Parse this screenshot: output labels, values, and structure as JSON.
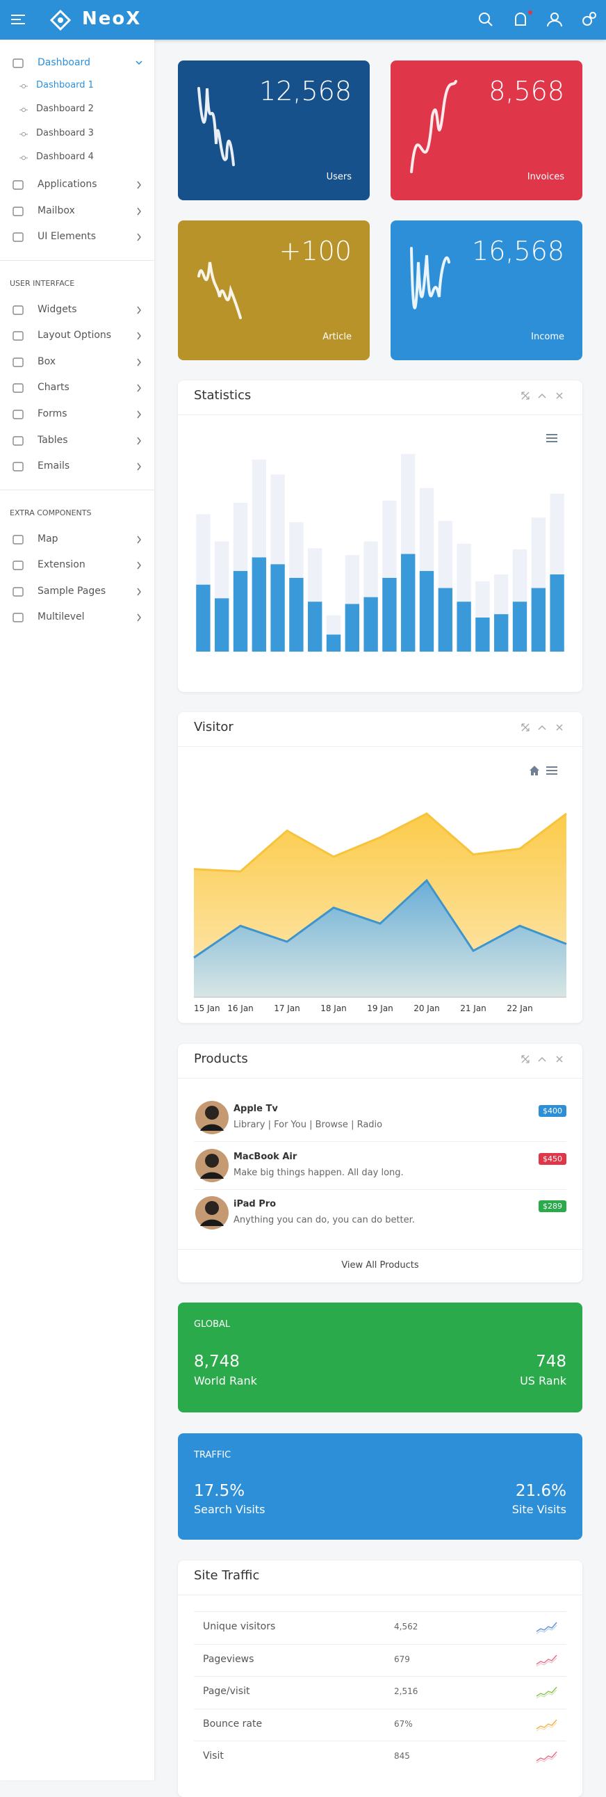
{
  "header": {
    "logo": "NeoX"
  },
  "sidebar": {
    "dashboard": "Dashboard",
    "submenu": [
      "Dashboard 1",
      "Dashboard 2",
      "Dashboard 3",
      "Dashboard 4"
    ],
    "main": [
      "Applications",
      "Mailbox",
      "UI Elements"
    ],
    "sections": [
      {
        "title": "USER INTERFACE",
        "items": [
          "Widgets",
          "Layout Options",
          "Box",
          "Charts",
          "Forms",
          "Tables",
          "Emails"
        ]
      },
      {
        "title": "EXTRA COMPONENTS",
        "items": [
          "Map",
          "Extension",
          "Sample Pages",
          "Multilevel"
        ]
      }
    ]
  },
  "stats": [
    {
      "value": "12,568",
      "label": "Users",
      "color": "#17518b"
    },
    {
      "value": "8,568",
      "label": "Invoices",
      "color": "#e0364a"
    },
    {
      "value": "+100",
      "label": "Article",
      "color": "#b8932a"
    },
    {
      "value": "16,568",
      "label": "Income",
      "color": "#2e8fd9"
    }
  ],
  "chart_data": [
    {
      "type": "bar",
      "title": "Statistics",
      "stacked": true,
      "ylim": [
        0,
        180
      ],
      "series": [
        {
          "color": "#3a9ad9",
          "values": [
            59,
            47,
            71,
            83,
            77,
            65,
            44,
            15,
            42,
            48,
            65,
            86,
            71,
            56,
            44,
            30,
            33,
            44,
            56,
            68
          ]
        },
        {
          "color": "#eef1f8",
          "values": [
            62,
            50,
            60,
            86,
            79,
            49,
            47,
            17,
            43,
            49,
            68,
            88,
            73,
            59,
            51,
            32,
            35,
            46,
            62,
            71
          ]
        }
      ]
    },
    {
      "type": "area",
      "title": "Visitor",
      "ylim": [
        0,
        200
      ],
      "categories": [
        "15 Jan",
        "16 Jan",
        "17 Jan",
        "18 Jan",
        "19 Jan",
        "20 Jan",
        "21 Jan",
        "22 Jan",
        null
      ],
      "series": [
        {
          "color": "#fccb4a",
          "values": [
            113,
            111,
            147,
            124,
            141,
            162,
            126,
            131,
            162
          ]
        },
        {
          "color": "#3e95cd",
          "values": [
            35,
            63,
            49,
            79,
            65,
            103,
            41,
            63,
            47
          ]
        }
      ]
    }
  ],
  "products": {
    "title": "Products",
    "items": [
      {
        "name": "Apple Tv",
        "desc": "Library | For You | Browse | Radio",
        "price": "$400",
        "color": "#2e8fd9"
      },
      {
        "name": "MacBook Air",
        "desc": "Make big things happen. All day long.",
        "price": "$450",
        "color": "#e0364a"
      },
      {
        "name": "iPad Pro",
        "desc": "Anything you can do, you can do better.",
        "price": "$289",
        "color": "#2aaa4a"
      }
    ],
    "footer": "View All Products"
  },
  "global": {
    "title": "GLOBAL",
    "color": "#2aaa4a",
    "items": [
      {
        "value": "8,748",
        "label": "World Rank"
      },
      {
        "value": "748",
        "label": "US Rank"
      }
    ]
  },
  "traffic": {
    "title": "TRAFFIC",
    "color": "#2e8fd9",
    "items": [
      {
        "value": "17.5%",
        "label": "Search Visits"
      },
      {
        "value": "21.6%",
        "label": "Site Visits"
      }
    ]
  },
  "site_traffic": {
    "title": "Site Traffic",
    "rows": [
      [
        "Unique visitors",
        "4,562"
      ],
      [
        "Pageviews",
        "679"
      ],
      [
        "Page/visit",
        "2,516"
      ],
      [
        "Bounce rate",
        "67%"
      ],
      [
        "Visit",
        "845"
      ]
    ]
  }
}
